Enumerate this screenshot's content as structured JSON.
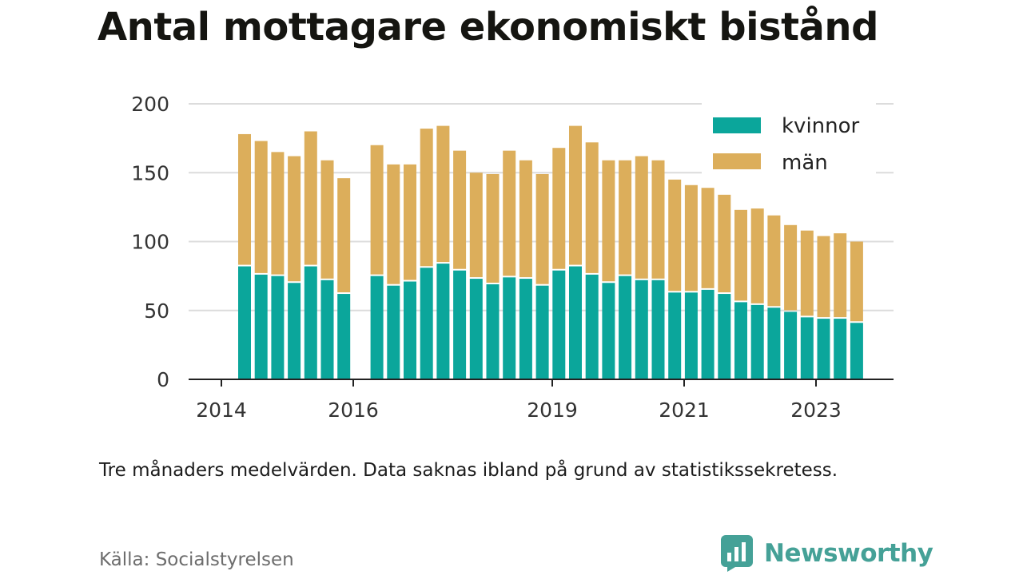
{
  "title": "Antal mottagare ekonomiskt bistånd",
  "note": "Tre månaders medelvärden. Data saknas ibland på grund av statistikssekretess.",
  "source": "Källa: Socialstyrelsen",
  "brand": "Newsworthy",
  "colors": {
    "kvinnor": "#0ba69b",
    "man": "#dcae5b",
    "grid": "#dcdcdc",
    "axis": "#222222",
    "brand": "#45a197"
  },
  "chart_data": {
    "type": "bar",
    "stacked": true,
    "ylim": [
      0,
      200
    ],
    "yticks": [
      0,
      50,
      100,
      150,
      200
    ],
    "xticks": [
      "2014",
      "2016",
      "2019",
      "2021",
      "2023"
    ],
    "legend_position": "top-right",
    "grid": true,
    "series": [
      {
        "name": "kvinnor",
        "values": [
          82,
          76,
          75,
          70,
          82,
          72,
          62,
          null,
          75,
          68,
          71,
          81,
          84,
          79,
          73,
          69,
          74,
          73,
          68,
          79,
          82,
          76,
          70,
          75,
          72,
          72,
          63,
          63,
          65,
          62,
          56,
          54,
          52,
          49,
          45,
          44,
          44,
          41
        ]
      },
      {
        "name": "män",
        "values": [
          96,
          97,
          90,
          92,
          98,
          87,
          84,
          null,
          95,
          88,
          85,
          101,
          100,
          87,
          77,
          80,
          92,
          86,
          81,
          89,
          102,
          96,
          89,
          84,
          90,
          87,
          82,
          78,
          74,
          72,
          67,
          70,
          67,
          63,
          63,
          60,
          62,
          59
        ]
      }
    ]
  }
}
